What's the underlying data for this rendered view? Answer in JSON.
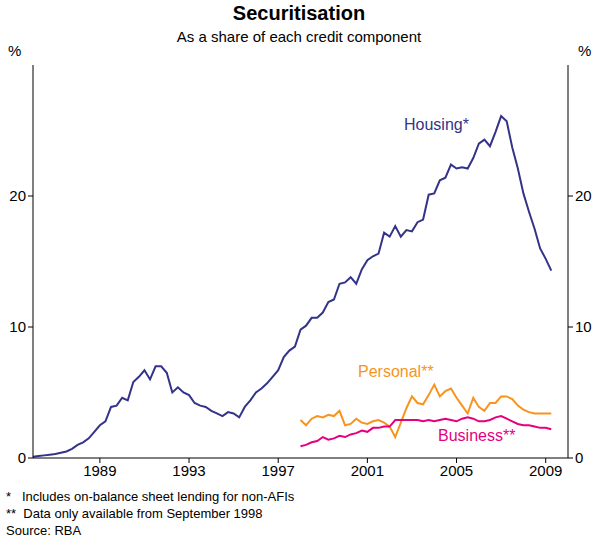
{
  "chart_data": {
    "type": "line",
    "title": "Securitisation",
    "subtitle": "As a share of each credit component",
    "ylabel": "%",
    "y2label": "%",
    "notes": [
      "*   Includes on-balance sheet lending for non-AFIs",
      "**  Data only available from September 1998",
      "Source: RBA"
    ],
    "xlim": [
      1986,
      2010
    ],
    "xticks": [
      1989,
      1993,
      1997,
      2001,
      2005,
      2009
    ],
    "ylim": [
      0,
      30
    ],
    "yticks": [
      0,
      10,
      20
    ],
    "y2lim": [
      0,
      30
    ],
    "y2ticks": [
      0,
      10,
      20
    ],
    "grid": false,
    "x": [
      1986,
      1986.25,
      1986.5,
      1986.75,
      1987,
      1987.25,
      1987.5,
      1987.75,
      1988,
      1988.25,
      1988.5,
      1988.75,
      1989,
      1989.25,
      1989.5,
      1989.75,
      1990,
      1990.25,
      1990.5,
      1990.75,
      1991,
      1991.25,
      1991.5,
      1991.75,
      1992,
      1992.25,
      1992.5,
      1992.75,
      1993,
      1993.25,
      1993.5,
      1993.75,
      1994,
      1994.25,
      1994.5,
      1994.75,
      1995,
      1995.25,
      1995.5,
      1995.75,
      1996,
      1996.25,
      1996.5,
      1996.75,
      1997,
      1997.25,
      1997.5,
      1997.75,
      1998,
      1998.25,
      1998.5,
      1998.75,
      1999,
      1999.25,
      1999.5,
      1999.75,
      2000,
      2000.25,
      2000.5,
      2000.75,
      2001,
      2001.25,
      2001.5,
      2001.75,
      2002,
      2002.25,
      2002.5,
      2002.75,
      2003,
      2003.25,
      2003.5,
      2003.75,
      2004,
      2004.25,
      2004.5,
      2004.75,
      2005,
      2005.25,
      2005.5,
      2005.75,
      2006,
      2006.25,
      2006.5,
      2006.75,
      2007,
      2007.25,
      2007.5,
      2007.75,
      2008,
      2008.25,
      2008.5,
      2008.75,
      2009,
      2009.25
    ],
    "series": [
      {
        "name": "Housing*",
        "color": "#33338a",
        "values": [
          0.1,
          0.15,
          0.2,
          0.25,
          0.3,
          0.4,
          0.5,
          0.7,
          1.0,
          1.2,
          1.5,
          2.0,
          2.5,
          2.8,
          3.9,
          4.0,
          4.6,
          4.4,
          5.8,
          6.2,
          6.7,
          6.0,
          7.0,
          7.0,
          6.5,
          5.0,
          5.4,
          5.0,
          4.8,
          4.2,
          4.0,
          3.9,
          3.6,
          3.4,
          3.2,
          3.5,
          3.4,
          3.1,
          3.9,
          4.4,
          5.0,
          5.3,
          5.7,
          6.2,
          6.7,
          7.7,
          8.2,
          8.5,
          9.8,
          10.1,
          10.7,
          10.7,
          11.1,
          11.9,
          12.1,
          13.3,
          13.4,
          13.8,
          13.3,
          14.4,
          15.1,
          15.4,
          15.6,
          17.2,
          16.9,
          17.7,
          16.9,
          17.4,
          17.3,
          18.0,
          18.2,
          20.1,
          20.2,
          21.2,
          21.4,
          22.4,
          22.1,
          22.2,
          22.1,
          22.9,
          24.0,
          24.3,
          23.8,
          24.9,
          26.1,
          25.7,
          23.7,
          22.1,
          20.2,
          18.8,
          17.5,
          16.0,
          15.2,
          14.3
        ]
      },
      {
        "name": "Personal**",
        "color": "#f7941d",
        "values": [
          null,
          null,
          null,
          null,
          null,
          null,
          null,
          null,
          null,
          null,
          null,
          null,
          null,
          null,
          null,
          null,
          null,
          null,
          null,
          null,
          null,
          null,
          null,
          null,
          null,
          null,
          null,
          null,
          null,
          null,
          null,
          null,
          null,
          null,
          null,
          null,
          null,
          null,
          null,
          null,
          null,
          null,
          null,
          null,
          null,
          null,
          null,
          null,
          2.9,
          2.5,
          3.0,
          3.2,
          3.1,
          3.3,
          3.2,
          3.6,
          2.5,
          2.6,
          3.0,
          2.7,
          2.6,
          2.8,
          2.9,
          2.7,
          2.4,
          1.6,
          2.7,
          3.8,
          4.7,
          4.2,
          4.1,
          4.8,
          5.6,
          4.7,
          5.1,
          5.3,
          4.6,
          4.0,
          3.4,
          4.6,
          3.9,
          3.6,
          4.2,
          4.2,
          4.7,
          4.7,
          4.5,
          4.0,
          3.7,
          3.5,
          3.4,
          3.4,
          3.4,
          3.4
        ]
      },
      {
        "name": "Business**",
        "color": "#e6007e",
        "values": [
          null,
          null,
          null,
          null,
          null,
          null,
          null,
          null,
          null,
          null,
          null,
          null,
          null,
          null,
          null,
          null,
          null,
          null,
          null,
          null,
          null,
          null,
          null,
          null,
          null,
          null,
          null,
          null,
          null,
          null,
          null,
          null,
          null,
          null,
          null,
          null,
          null,
          null,
          null,
          null,
          null,
          null,
          null,
          null,
          null,
          null,
          null,
          null,
          0.9,
          1.0,
          1.2,
          1.3,
          1.6,
          1.4,
          1.5,
          1.7,
          1.6,
          1.8,
          1.9,
          2.1,
          2.0,
          2.3,
          2.3,
          2.4,
          2.4,
          2.9,
          2.9,
          2.9,
          2.9,
          2.9,
          2.8,
          2.9,
          2.8,
          2.9,
          3.0,
          2.9,
          2.8,
          3.0,
          3.1,
          3.0,
          2.8,
          2.8,
          2.9,
          3.1,
          3.2,
          3.0,
          2.8,
          2.6,
          2.5,
          2.5,
          2.4,
          2.3,
          2.3,
          2.2
        ]
      }
    ]
  }
}
